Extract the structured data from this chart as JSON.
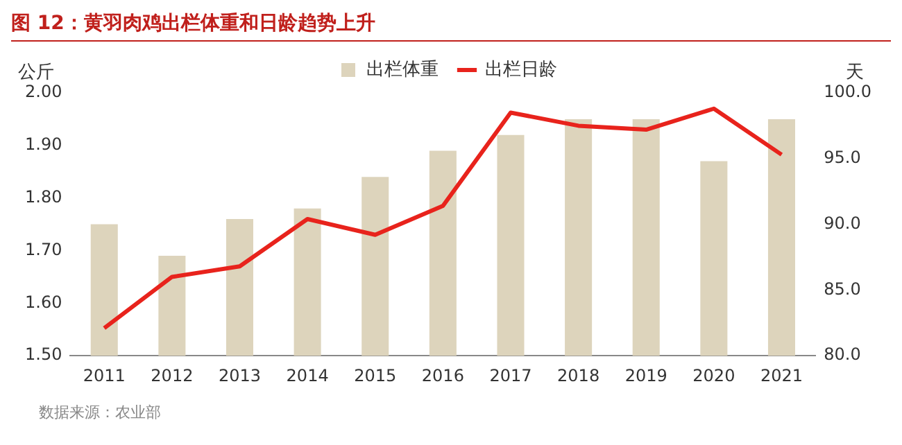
{
  "chart_data": {
    "type": "bar",
    "title": "图 12：黄羽肉鸡出栏体重和日龄趋势上升",
    "ylabel": "公斤",
    "y2label": "天",
    "categories": [
      "2011",
      "2012",
      "2013",
      "2014",
      "2015",
      "2016",
      "2017",
      "2018",
      "2019",
      "2020",
      "2021"
    ],
    "series": [
      {
        "name": "出栏体重",
        "color": "#ddd4bc",
        "values": [
          1.75,
          1.69,
          1.76,
          1.78,
          1.84,
          1.89,
          1.92,
          1.95,
          1.95,
          1.87,
          1.95
        ]
      },
      {
        "name": "出栏日龄",
        "type": "line",
        "axis": "y2",
        "color": "#e8231c",
        "values": [
          82.1,
          86.0,
          86.8,
          90.4,
          89.2,
          91.4,
          98.5,
          97.5,
          97.2,
          98.8,
          95.3
        ]
      }
    ],
    "ylim": [
      1.5,
      2.0
    ],
    "yticks": [
      {
        "value": 1.5,
        "label": "1.50"
      },
      {
        "value": 1.6,
        "label": "1.60"
      },
      {
        "value": 1.7,
        "label": "1.70"
      },
      {
        "value": 1.8,
        "label": "1.80"
      },
      {
        "value": 1.9,
        "label": "1.90"
      },
      {
        "value": 2.0,
        "label": "2.00"
      }
    ],
    "y2lim": [
      80,
      100
    ],
    "y2ticks": [
      {
        "value": 80,
        "label": "80.0"
      },
      {
        "value": 85,
        "label": "85.0"
      },
      {
        "value": 90,
        "label": "90.0"
      },
      {
        "value": 95,
        "label": "95.0"
      },
      {
        "value": 100,
        "label": "100.0"
      }
    ],
    "legend": "top",
    "marker": "none",
    "line_style": "solid",
    "annotations": [
      "数据来源：农业部"
    ]
  }
}
